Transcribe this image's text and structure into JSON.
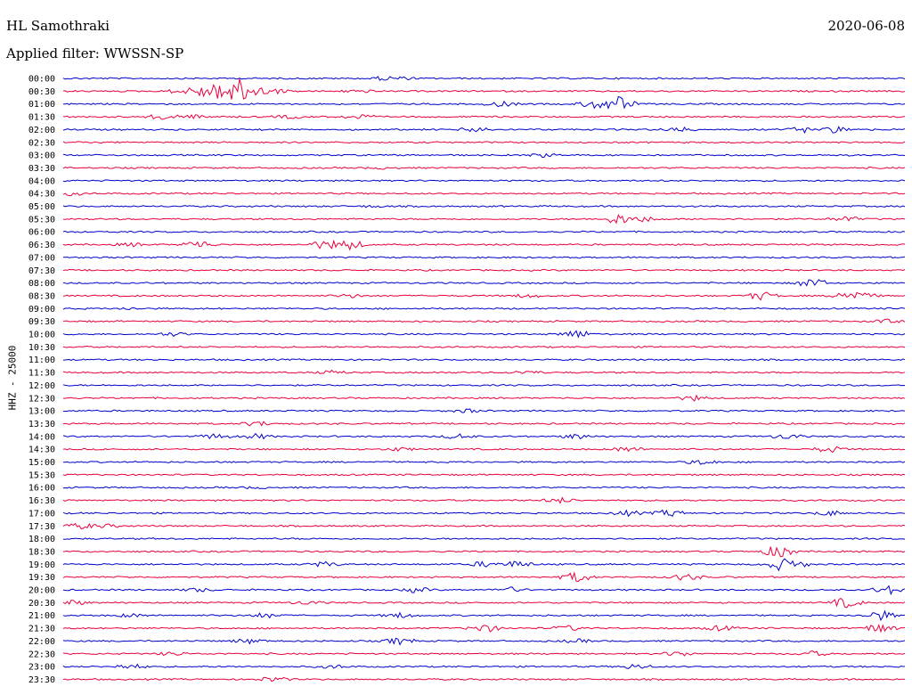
{
  "header": {
    "station": "HL Samothraki",
    "date": "2020-06-08",
    "filter": "Applied filter: WWSSN-SP"
  },
  "chart_data": {
    "type": "line",
    "title": "HL Samothraki",
    "ylabel": "HHZ - 25000",
    "colors": [
      "#0000cc",
      "#e8003c"
    ],
    "rows": [
      {
        "label": "00:00",
        "events": [
          [
            0.38,
            0.2
          ],
          [
            0.4,
            0.15
          ]
        ]
      },
      {
        "label": "00:30",
        "events": [
          [
            0.14,
            0.3
          ],
          [
            0.17,
            0.9
          ],
          [
            0.2,
            1.6
          ],
          [
            0.22,
            0.8
          ],
          [
            0.25,
            0.3
          ],
          [
            0.35,
            0.2
          ]
        ]
      },
      {
        "label": "01:00",
        "events": [
          [
            0.52,
            0.3
          ],
          [
            0.63,
            0.5
          ],
          [
            0.66,
            0.9
          ]
        ]
      },
      {
        "label": "01:30",
        "events": [
          [
            0.12,
            0.4
          ],
          [
            0.16,
            0.2
          ],
          [
            0.27,
            0.2
          ],
          [
            0.35,
            0.3
          ]
        ]
      },
      {
        "label": "02:00",
        "events": [
          [
            0.49,
            0.3
          ],
          [
            0.73,
            0.3
          ],
          [
            0.88,
            0.3
          ],
          [
            0.92,
            0.4
          ]
        ]
      },
      {
        "label": "02:30",
        "events": []
      },
      {
        "label": "03:00",
        "events": [
          [
            0.57,
            0.2
          ]
        ]
      },
      {
        "label": "03:30",
        "events": [
          [
            0.38,
            0.1
          ]
        ]
      },
      {
        "label": "04:00",
        "events": []
      },
      {
        "label": "04:30",
        "events": [
          [
            0.01,
            0.2
          ]
        ]
      },
      {
        "label": "05:00",
        "events": [
          [
            0.37,
            0.1
          ]
        ]
      },
      {
        "label": "05:30",
        "events": [
          [
            0.66,
            0.6
          ],
          [
            0.69,
            0.3
          ],
          [
            0.93,
            0.3
          ]
        ]
      },
      {
        "label": "06:00",
        "events": []
      },
      {
        "label": "06:30",
        "events": [
          [
            0.08,
            0.2
          ],
          [
            0.16,
            0.5
          ],
          [
            0.31,
            0.5
          ],
          [
            0.34,
            0.6
          ]
        ]
      },
      {
        "label": "07:00",
        "events": []
      },
      {
        "label": "07:30",
        "events": []
      },
      {
        "label": "08:00",
        "events": [
          [
            0.89,
            0.6
          ]
        ]
      },
      {
        "label": "08:30",
        "events": [
          [
            0.34,
            0.2
          ],
          [
            0.55,
            0.2
          ],
          [
            0.83,
            0.5
          ],
          [
            0.93,
            0.5
          ],
          [
            0.95,
            0.3
          ]
        ]
      },
      {
        "label": "09:00",
        "events": [
          [
            0.08,
            0.1
          ]
        ]
      },
      {
        "label": "09:30",
        "events": [
          [
            0.98,
            0.2
          ]
        ]
      },
      {
        "label": "10:00",
        "events": [
          [
            0.13,
            0.2
          ],
          [
            0.61,
            0.5
          ]
        ]
      },
      {
        "label": "10:30",
        "events": []
      },
      {
        "label": "11:00",
        "events": []
      },
      {
        "label": "11:30",
        "events": [
          [
            0.32,
            0.2
          ],
          [
            0.55,
            0.2
          ]
        ]
      },
      {
        "label": "12:00",
        "events": []
      },
      {
        "label": "12:30",
        "events": [
          [
            0.75,
            0.3
          ]
        ]
      },
      {
        "label": "13:00",
        "events": [
          [
            0.48,
            0.2
          ]
        ]
      },
      {
        "label": "13:30",
        "events": [
          [
            0.23,
            0.3
          ]
        ]
      },
      {
        "label": "14:00",
        "events": [
          [
            0.18,
            0.3
          ],
          [
            0.23,
            0.3
          ],
          [
            0.47,
            0.3
          ],
          [
            0.61,
            0.3
          ],
          [
            0.86,
            0.3
          ]
        ]
      },
      {
        "label": "14:30",
        "events": [
          [
            0.4,
            0.2
          ],
          [
            0.67,
            0.3
          ],
          [
            0.91,
            0.4
          ]
        ]
      },
      {
        "label": "15:00",
        "events": [
          [
            0.76,
            0.3
          ]
        ]
      },
      {
        "label": "15:30",
        "events": []
      },
      {
        "label": "16:00",
        "events": [
          [
            0.23,
            0.1
          ]
        ]
      },
      {
        "label": "16:30",
        "events": [
          [
            0.59,
            0.3
          ]
        ]
      },
      {
        "label": "17:00",
        "events": [
          [
            0.67,
            0.3
          ],
          [
            0.72,
            0.4
          ],
          [
            0.91,
            0.3
          ]
        ]
      },
      {
        "label": "17:30",
        "events": [
          [
            0.02,
            0.3
          ],
          [
            0.05,
            0.2
          ]
        ]
      },
      {
        "label": "18:00",
        "events": []
      },
      {
        "label": "18:30",
        "events": [
          [
            0.85,
            0.8
          ]
        ]
      },
      {
        "label": "19:00",
        "events": [
          [
            0.31,
            0.3
          ],
          [
            0.5,
            0.3
          ],
          [
            0.54,
            0.4
          ],
          [
            0.85,
            0.6
          ],
          [
            0.87,
            0.4
          ]
        ]
      },
      {
        "label": "19:30",
        "events": [
          [
            0.61,
            0.6
          ],
          [
            0.74,
            0.4
          ]
        ]
      },
      {
        "label": "20:00",
        "events": [
          [
            0.16,
            0.2
          ],
          [
            0.42,
            0.3
          ],
          [
            0.53,
            0.3
          ],
          [
            0.98,
            0.5
          ]
        ]
      },
      {
        "label": "20:30",
        "events": [
          [
            0.01,
            0.3
          ],
          [
            0.29,
            0.2
          ],
          [
            0.93,
            0.6
          ]
        ]
      },
      {
        "label": "21:00",
        "events": [
          [
            0.08,
            0.2
          ],
          [
            0.24,
            0.3
          ],
          [
            0.4,
            0.3
          ],
          [
            0.97,
            0.6
          ]
        ]
      },
      {
        "label": "21:30",
        "events": [
          [
            0.5,
            0.5
          ],
          [
            0.6,
            0.3
          ],
          [
            0.78,
            0.3
          ],
          [
            0.97,
            0.6
          ]
        ]
      },
      {
        "label": "22:00",
        "events": [
          [
            0.22,
            0.3
          ],
          [
            0.4,
            0.4
          ],
          [
            0.61,
            0.2
          ]
        ]
      },
      {
        "label": "22:30",
        "events": [
          [
            0.13,
            0.2
          ],
          [
            0.73,
            0.3
          ],
          [
            0.89,
            0.3
          ]
        ]
      },
      {
        "label": "23:00",
        "events": [
          [
            0.08,
            0.3
          ],
          [
            0.32,
            0.2
          ],
          [
            0.68,
            0.3
          ]
        ]
      },
      {
        "label": "23:30",
        "events": [
          [
            0.25,
            0.3
          ]
        ]
      }
    ]
  }
}
